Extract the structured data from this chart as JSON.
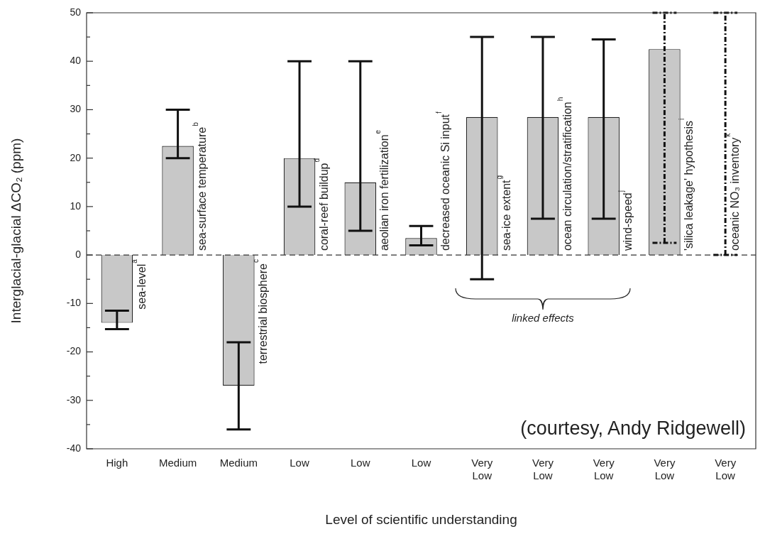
{
  "chart_data": {
    "type": "bar",
    "xlabel": "Level of scientific understanding",
    "ylabel": "Interglacial-glacial ΔCO₂ (ppm)",
    "categories": [
      "High",
      "Medium",
      "Medium",
      "Low",
      "Low",
      "Low",
      "Very Low",
      "Very Low",
      "Very Low",
      "Very Low",
      "Very Low"
    ],
    "series": [
      {
        "color": "#c8c8c8",
        "values": [
          -14,
          22.5,
          -27,
          20,
          15,
          3.5,
          28.5,
          28.5,
          28.5,
          null,
          null
        ],
        "errors": [
          [
            -15.3,
            -11.5
          ],
          [
            20,
            30
          ],
          [
            -36,
            -18
          ],
          [
            10,
            40
          ],
          [
            5,
            40
          ],
          [
            2,
            6
          ],
          [
            -5,
            45
          ],
          [
            7.5,
            45
          ],
          [
            7.5,
            44.5
          ],
          null,
          null
        ],
        "line_style": "solid",
        "value_labels": [
          "sea-level$^{a}$",
          "sea-surface temperature$^{b}$",
          "terrestrial biosphere$^{c}$",
          "coral-reef buildup$^{d}$",
          "aeolian iron fertilization$^{e}$",
          "decreased oceanic Si input$^{f}$",
          "sea-ice extent$^{g}$",
          "ocean circulation/stratification$^{h}$",
          "wind-speed$^{j}$",
          null,
          null
        ]
      },
      {
        "color": "#c8c8c8",
        "values": [
          null,
          null,
          null,
          null,
          null,
          null,
          null,
          null,
          null,
          42.5,
          0
        ],
        "errors": [
          null,
          null,
          null,
          null,
          null,
          null,
          null,
          null,
          null,
          [
            2.5,
            50
          ],
          [
            0,
            50
          ]
        ],
        "line_style": "dashed",
        "value_labels": [
          null,
          null,
          null,
          null,
          null,
          null,
          null,
          null,
          null,
          "'silica leakage' hypothesis$^{i}$",
          "oceanic NO₃ inventory$^{k}$"
        ]
      }
    ],
    "ylim": [
      -40,
      50
    ],
    "yticks": [
      -40,
      {
        "value": -35,
        "label": null
      },
      -30,
      {
        "value": -25,
        "label": null
      },
      -20,
      {
        "value": -15,
        "label": null
      },
      -10,
      {
        "value": -5,
        "label": null
      },
      0,
      {
        "value": 5,
        "label": null
      },
      10,
      {
        "value": 15,
        "label": null
      },
      20,
      {
        "value": 25,
        "label": null
      },
      30,
      {
        "value": 35,
        "label": null
      },
      40,
      {
        "value": 45,
        "label": null
      },
      50
    ],
    "grid": false,
    "legend": false,
    "ref_lines": [
      {
        "axis": "y",
        "value": 0,
        "line_style": "dashed",
        "color": "#333333"
      }
    ],
    "annotations": [
      "linked effects",
      "(courtesy, Andy Ridgewell)"
    ]
  }
}
